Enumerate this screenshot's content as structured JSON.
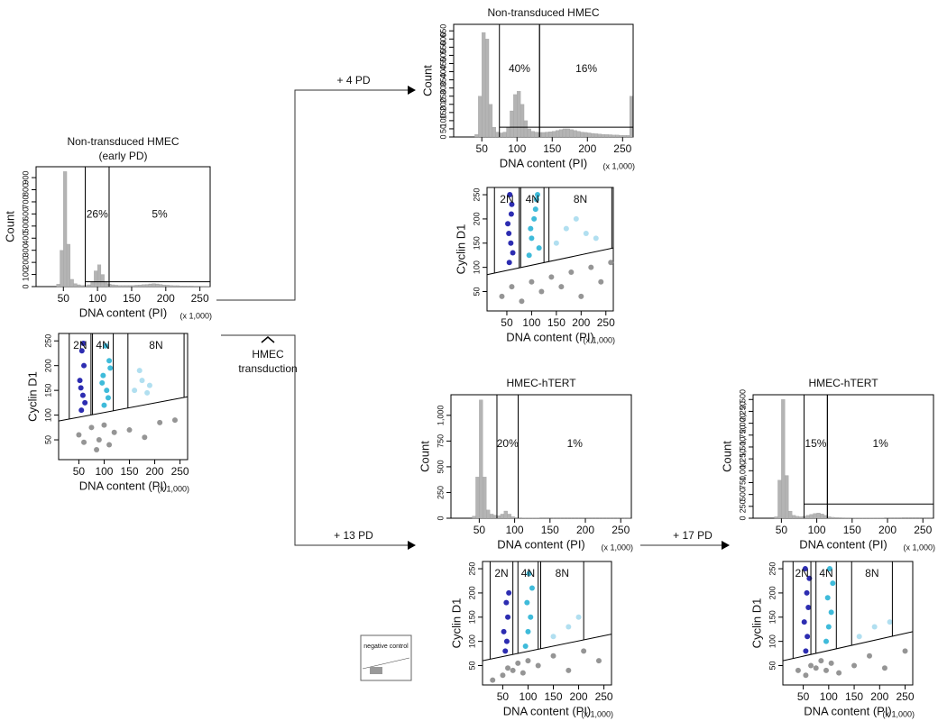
{
  "annotations": {
    "pd4": "+ 4 PD",
    "pd13": "+ 13 PD",
    "pd17": "+ 17 PD",
    "transduction": [
      "HMEC",
      "transduction"
    ],
    "negative_control": "negative control"
  },
  "chart_data": [
    {
      "type": "histogram",
      "title": "Non-transduced HMEC",
      "subtitle": "(early PD)",
      "x_label": "DNA content (PI)",
      "x_unit": "(x 1,000)",
      "y_label": "Count",
      "color": "#b4b4b4",
      "xlim": [
        10,
        265
      ],
      "ylim": [
        0,
        990
      ],
      "xticks": [
        50,
        100,
        150,
        200,
        250
      ],
      "yticks": [
        0,
        100,
        200,
        300,
        400,
        500,
        600,
        700,
        800,
        900
      ],
      "bins": [
        10,
        15,
        20,
        25,
        30,
        35,
        40,
        45,
        50,
        55,
        60,
        65,
        70,
        75,
        80,
        85,
        90,
        95,
        100,
        105,
        110,
        115,
        120,
        125,
        130,
        135,
        140,
        145,
        150,
        155,
        160,
        165,
        170,
        175,
        180,
        185,
        190,
        195,
        200,
        205,
        210,
        215,
        220,
        225,
        230,
        235,
        240,
        245,
        250,
        255,
        260,
        265
      ],
      "counts": [
        0,
        0,
        0,
        0,
        0,
        0,
        20,
        300,
        950,
        350,
        60,
        25,
        15,
        10,
        10,
        15,
        40,
        130,
        180,
        100,
        40,
        20,
        15,
        12,
        10,
        10,
        10,
        10,
        10,
        12,
        14,
        16,
        18,
        22,
        25,
        22,
        18,
        14,
        12,
        10,
        8,
        8,
        6,
        6,
        5,
        5,
        4,
        4,
        3,
        3,
        2
      ],
      "floor": 40,
      "regions": [
        {
          "label": "26%",
          "x": [
            82,
            117
          ]
        },
        {
          "label": "5%",
          "x": [
            117,
            265
          ]
        }
      ]
    },
    {
      "type": "scatter",
      "x_label": "DNA content (PI)",
      "x_unit": "(x 1,000)",
      "y_label": "Cyclin D1",
      "xlim": [
        10,
        265
      ],
      "ylim": [
        10,
        265
      ],
      "xticks": [
        50,
        100,
        150,
        200,
        250
      ],
      "yticks": [
        50,
        100,
        150,
        200,
        250
      ],
      "gates": [
        {
          "label": "2N",
          "x": [
            31,
            74
          ]
        },
        {
          "label": "4N",
          "x": [
            77,
            118
          ]
        },
        {
          "label": "8N",
          "x": [
            147,
            258
          ]
        }
      ],
      "gate_floor": {
        "x": [
          10,
          265
        ],
        "y": [
          88,
          137
        ]
      },
      "series": [
        {
          "color": "#1616a8",
          "x": [
            55,
            58,
            52,
            60,
            56,
            62,
            54,
            59
          ],
          "y": [
            110,
            140,
            170,
            200,
            230,
            125,
            155,
            245
          ]
        },
        {
          "color": "#2ab4d6",
          "x": [
            100,
            105,
            98,
            110,
            103,
            108,
            96,
            112
          ],
          "y": [
            120,
            150,
            180,
            210,
            240,
            135,
            165,
            195
          ]
        },
        {
          "color": "#a9dcee",
          "x": [
            160,
            175,
            190,
            170,
            185
          ],
          "y": [
            150,
            170,
            160,
            190,
            145
          ]
        },
        {
          "color": "#8a8a8a",
          "x": [
            50,
            60,
            75,
            90,
            100,
            110,
            120,
            150,
            180,
            210,
            240,
            85
          ],
          "y": [
            60,
            45,
            75,
            50,
            80,
            40,
            65,
            70,
            55,
            85,
            90,
            30
          ]
        }
      ]
    },
    {
      "type": "histogram",
      "title": "Non-transduced HMEC",
      "x_label": "DNA content (PI)",
      "x_unit": "(x 1,000)",
      "y_label": "Count",
      "color": "#b4b4b4",
      "xlim": [
        10,
        265
      ],
      "ylim": [
        0,
        690
      ],
      "xticks": [
        50,
        100,
        150,
        200,
        250
      ],
      "yticks": [
        0,
        50,
        100,
        150,
        200,
        250,
        300,
        350,
        400,
        450,
        500,
        550,
        600,
        650
      ],
      "bins": [
        10,
        15,
        20,
        25,
        30,
        35,
        40,
        45,
        50,
        55,
        60,
        65,
        70,
        75,
        80,
        85,
        90,
        95,
        100,
        105,
        110,
        115,
        120,
        125,
        130,
        135,
        140,
        145,
        150,
        155,
        160,
        165,
        170,
        175,
        180,
        185,
        190,
        195,
        200,
        205,
        210,
        215,
        220,
        225,
        230,
        235,
        240,
        245,
        250,
        255,
        260,
        265
      ],
      "counts": [
        0,
        0,
        0,
        0,
        0,
        0,
        15,
        250,
        640,
        600,
        200,
        60,
        30,
        25,
        30,
        60,
        160,
        260,
        280,
        200,
        100,
        50,
        35,
        30,
        28,
        28,
        30,
        32,
        35,
        40,
        45,
        50,
        50,
        45,
        40,
        35,
        30,
        28,
        25,
        22,
        20,
        18,
        16,
        15,
        14,
        12,
        12,
        10,
        10,
        10,
        250
      ],
      "floor": 60,
      "regions": [
        {
          "label": "40%",
          "x": [
            75,
            132
          ]
        },
        {
          "label": "16%",
          "x": [
            132,
            265
          ]
        }
      ]
    },
    {
      "type": "scatter",
      "x_label": "DNA content (PI)",
      "x_unit": "(x 1,000)",
      "y_label": "Cyclin D1",
      "xlim": [
        10,
        265
      ],
      "ylim": [
        10,
        265
      ],
      "xticks": [
        50,
        100,
        150,
        200,
        250
      ],
      "yticks": [
        50,
        100,
        150,
        200,
        250
      ],
      "gates": [
        {
          "label": "2N",
          "x": [
            25,
            75
          ]
        },
        {
          "label": "4N",
          "x": [
            78,
            125
          ]
        },
        {
          "label": "8N",
          "x": [
            135,
            262
          ]
        }
      ],
      "gate_floor": {
        "x": [
          10,
          265
        ],
        "y": [
          85,
          140
        ]
      },
      "series": [
        {
          "color": "#1616a8",
          "x": [
            55,
            58,
            52,
            60,
            56,
            62,
            54,
            59
          ],
          "y": [
            110,
            150,
            190,
            230,
            250,
            130,
            170,
            210
          ]
        },
        {
          "color": "#2ab4d6",
          "x": [
            95,
            100,
            105,
            110,
            115,
            98,
            108,
            112
          ],
          "y": [
            125,
            160,
            200,
            240,
            140,
            180,
            220,
            250
          ]
        },
        {
          "color": "#a9dcee",
          "x": [
            150,
            170,
            190,
            210,
            230
          ],
          "y": [
            150,
            180,
            200,
            170,
            160
          ]
        },
        {
          "color": "#8a8a8a",
          "x": [
            40,
            60,
            80,
            100,
            120,
            140,
            160,
            180,
            200,
            220,
            240,
            260
          ],
          "y": [
            40,
            60,
            30,
            70,
            50,
            80,
            60,
            90,
            40,
            100,
            70,
            110
          ]
        }
      ]
    },
    {
      "type": "histogram",
      "title": "HMEC-hTERT",
      "x_label": "DNA content (PI)",
      "x_unit": "(x 1,000)",
      "y_label": "Count",
      "color": "#b4b4b4",
      "xlim": [
        10,
        265
      ],
      "ylim": [
        0,
        1200
      ],
      "xticks": [
        50,
        100,
        150,
        200,
        250
      ],
      "yticks": [
        0,
        250,
        500,
        750,
        {
          "value": 1000,
          "label": "1,000"
        }
      ],
      "bins": [
        10,
        15,
        20,
        25,
        30,
        35,
        40,
        45,
        50,
        55,
        60,
        65,
        70,
        75,
        80,
        85,
        90,
        95,
        100,
        105,
        110,
        115,
        120,
        125,
        130,
        135,
        140,
        145,
        150,
        155,
        160,
        165,
        170,
        175,
        180,
        185,
        190,
        195,
        200,
        205,
        210,
        215,
        220,
        225,
        230,
        235,
        240,
        245,
        250,
        255,
        260,
        265
      ],
      "counts": [
        0,
        0,
        0,
        0,
        0,
        0,
        20,
        400,
        1150,
        400,
        80,
        40,
        30,
        25,
        40,
        70,
        40,
        15,
        8,
        5,
        3,
        2,
        2,
        2,
        2,
        1,
        1,
        1,
        1,
        1,
        1,
        1,
        1,
        1,
        1,
        1,
        1,
        1,
        1,
        1,
        1,
        1,
        1,
        1,
        1,
        1,
        1,
        1,
        1,
        1,
        1
      ],
      "regions": [
        {
          "label": "20%",
          "x": [
            75,
            105
          ]
        },
        {
          "label": "1%",
          "x": [
            105,
            265
          ]
        }
      ]
    },
    {
      "type": "scatter",
      "x_label": "DNA content (PI)",
      "x_unit": "(x 1,000)",
      "y_label": "Cyclin D1",
      "xlim": [
        10,
        265
      ],
      "ylim": [
        10,
        265
      ],
      "xticks": [
        50,
        100,
        150,
        200,
        250
      ],
      "yticks": [
        50,
        100,
        150,
        200,
        250
      ],
      "gates": [
        {
          "label": "2N",
          "x": [
            25,
            70
          ]
        },
        {
          "label": "4N",
          "x": [
            80,
            120
          ]
        },
        {
          "label": "8N",
          "x": [
            125,
            210
          ]
        }
      ],
      "gate_floor": {
        "x": [
          10,
          265
        ],
        "y": [
          60,
          115
        ]
      },
      "series": [
        {
          "color": "#1616a8",
          "x": [
            55,
            58,
            52,
            60,
            57,
            62
          ],
          "y": [
            80,
            100,
            120,
            150,
            180,
            200
          ]
        },
        {
          "color": "#2ab4d6",
          "x": [
            95,
            100,
            105,
            98,
            108,
            102
          ],
          "y": [
            90,
            120,
            150,
            180,
            210,
            240
          ]
        },
        {
          "color": "#a9dcee",
          "x": [
            150,
            180,
            200
          ],
          "y": [
            110,
            130,
            150
          ]
        },
        {
          "color": "#8a8a8a",
          "x": [
            30,
            50,
            60,
            70,
            80,
            90,
            100,
            120,
            150,
            180,
            210,
            240
          ],
          "y": [
            20,
            30,
            45,
            40,
            55,
            35,
            60,
            50,
            70,
            40,
            80,
            60
          ]
        }
      ]
    },
    {
      "type": "histogram",
      "title": "HMEC-hTERT",
      "x_label": "DNA content (PI)",
      "x_unit": "(x 1,000)",
      "y_label": "Count",
      "color": "#b4b4b4",
      "xlim": [
        10,
        265
      ],
      "ylim": [
        0,
        2600
      ],
      "xticks": [
        50,
        100,
        150,
        200,
        250
      ],
      "yticks": [
        0,
        250,
        500,
        750,
        {
          "value": 1000,
          "label": "1,000"
        },
        {
          "value": 1250,
          "label": "1,250"
        },
        {
          "value": 1500,
          "label": "1,500"
        },
        {
          "value": 1750,
          "label": "1,750"
        },
        {
          "value": 2000,
          "label": "2,000"
        },
        {
          "value": 2250,
          "label": "2,250"
        },
        {
          "value": 2500,
          "label": "2,500"
        }
      ],
      "bins": [
        10,
        15,
        20,
        25,
        30,
        35,
        40,
        45,
        50,
        55,
        60,
        65,
        70,
        75,
        80,
        85,
        90,
        95,
        100,
        105,
        110,
        115,
        120,
        125,
        130,
        135,
        140,
        145,
        150,
        155,
        160,
        165,
        170,
        175,
        180,
        185,
        190,
        195,
        200,
        205,
        210,
        215,
        220,
        225,
        230,
        235,
        240,
        245,
        250,
        255,
        260,
        265
      ],
      "counts": [
        0,
        0,
        0,
        0,
        0,
        0,
        30,
        800,
        2500,
        900,
        150,
        60,
        40,
        30,
        40,
        60,
        80,
        100,
        110,
        90,
        60,
        30,
        20,
        15,
        12,
        10,
        8,
        8,
        6,
        6,
        5,
        5,
        4,
        4,
        3,
        3,
        3,
        2,
        2,
        2,
        2,
        2,
        1,
        1,
        1,
        1,
        1,
        1,
        1,
        1,
        1
      ],
      "floor": 300,
      "regions": [
        {
          "label": "15%",
          "x": [
            82,
            115
          ]
        },
        {
          "label": "1%",
          "x": [
            115,
            265
          ]
        }
      ]
    },
    {
      "type": "scatter",
      "x_label": "DNA content (PI)",
      "x_unit": "(x 1,000)",
      "y_label": "Cyclin D1",
      "xlim": [
        10,
        265
      ],
      "ylim": [
        10,
        265
      ],
      "xticks": [
        50,
        100,
        150,
        200,
        250
      ],
      "yticks": [
        50,
        100,
        150,
        200,
        250
      ],
      "gates": [
        {
          "label": "2N",
          "x": [
            30,
            65
          ]
        },
        {
          "label": "4N",
          "x": [
            75,
            115
          ]
        },
        {
          "label": "8N",
          "x": [
            145,
            225
          ]
        }
      ],
      "gate_floor": {
        "x": [
          10,
          265
        ],
        "y": [
          60,
          120
        ]
      },
      "series": [
        {
          "color": "#1616a8",
          "x": [
            55,
            58,
            52,
            60,
            57,
            62,
            54
          ],
          "y": [
            80,
            110,
            140,
            170,
            200,
            230,
            250
          ]
        },
        {
          "color": "#2ab4d6",
          "x": [
            95,
            100,
            105,
            98,
            108,
            102
          ],
          "y": [
            100,
            130,
            160,
            190,
            220,
            250
          ]
        },
        {
          "color": "#a9dcee",
          "x": [
            160,
            190,
            220
          ],
          "y": [
            110,
            130,
            140
          ]
        },
        {
          "color": "#8a8a8a",
          "x": [
            40,
            55,
            65,
            75,
            85,
            95,
            105,
            120,
            150,
            180,
            210,
            250
          ],
          "y": [
            40,
            30,
            50,
            45,
            60,
            40,
            55,
            35,
            50,
            70,
            45,
            80
          ]
        }
      ]
    }
  ]
}
